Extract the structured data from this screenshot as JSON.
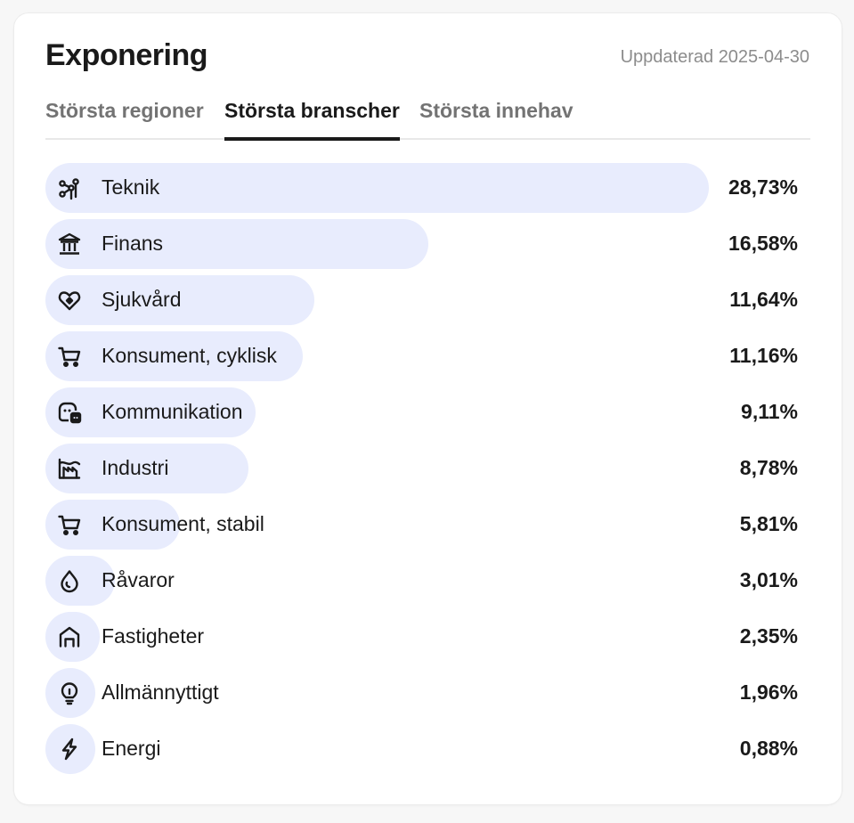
{
  "header": {
    "title": "Exponering",
    "updated": "Uppdaterad 2025-04-30"
  },
  "tabs": [
    {
      "label": "Största regioner",
      "active": false
    },
    {
      "label": "Största branscher",
      "active": true
    },
    {
      "label": "Största innehav",
      "active": false
    }
  ],
  "colors": {
    "bar": "#e8ecfd",
    "text": "#1a1a1a",
    "muted": "#8c8c8c"
  },
  "sectors": [
    {
      "label": "Teknik",
      "value": "28,73%",
      "percent": 28.73,
      "icon": "technology-icon"
    },
    {
      "label": "Finans",
      "value": "16,58%",
      "percent": 16.58,
      "icon": "bank-icon"
    },
    {
      "label": "Sjukvård",
      "value": "11,64%",
      "percent": 11.64,
      "icon": "heart-icon"
    },
    {
      "label": "Konsument, cyklisk",
      "value": "11,16%",
      "percent": 11.16,
      "icon": "cart-icon"
    },
    {
      "label": "Kommunikation",
      "value": "9,11%",
      "percent": 9.11,
      "icon": "chat-icon"
    },
    {
      "label": "Industri",
      "value": "8,78%",
      "percent": 8.78,
      "icon": "factory-icon"
    },
    {
      "label": "Konsument, stabil",
      "value": "5,81%",
      "percent": 5.81,
      "icon": "cart-icon"
    },
    {
      "label": "Råvaror",
      "value": "3,01%",
      "percent": 3.01,
      "icon": "drop-icon"
    },
    {
      "label": "Fastigheter",
      "value": "2,35%",
      "percent": 2.35,
      "icon": "house-icon"
    },
    {
      "label": "Allmännyttigt",
      "value": "1,96%",
      "percent": 1.96,
      "icon": "lightbulb-icon"
    },
    {
      "label": "Energi",
      "value": "0,88%",
      "percent": 0.88,
      "icon": "lightning-icon"
    }
  ]
}
